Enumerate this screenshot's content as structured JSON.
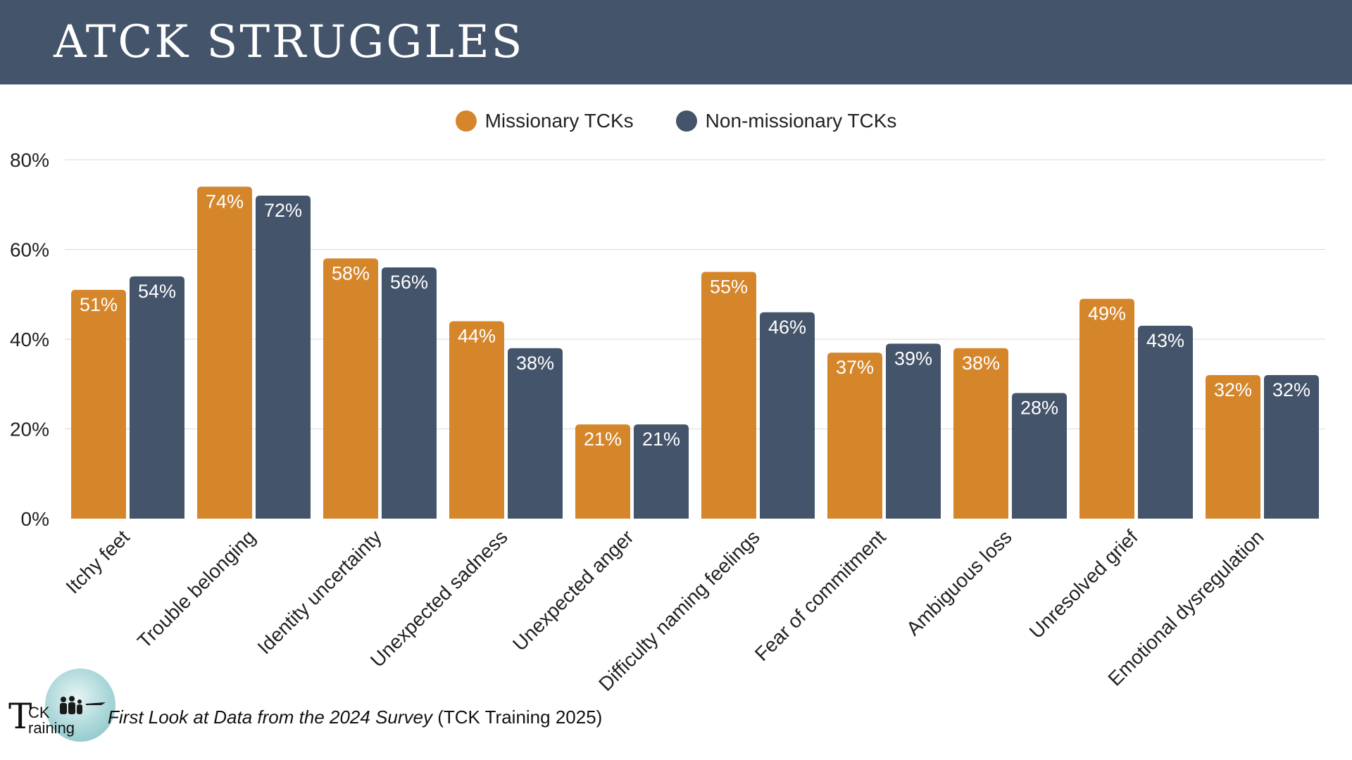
{
  "header": {
    "title": "ATCK STRUGGLES"
  },
  "colors": {
    "header_bg": "#44546a",
    "missionary": "#d5862b",
    "non_missionary": "#44546a"
  },
  "chart_data": {
    "type": "bar",
    "title": "",
    "xlabel": "",
    "ylabel": "",
    "ylim": [
      0,
      80
    ],
    "yticks": [
      "0%",
      "20%",
      "40%",
      "60%",
      "80%"
    ],
    "grid": true,
    "legend_position": "top",
    "categories": [
      "Itchy feet",
      "Trouble belonging",
      "Identity uncertainty",
      "Unexpected sadness",
      "Unexpected anger",
      "Difficulty naming feelings",
      "Fear of commitment",
      "Ambiguous loss",
      "Unresolved grief",
      "Emotional dysregulation"
    ],
    "series": [
      {
        "name": "Missionary TCKs",
        "color": "#d5862b",
        "values": [
          51,
          74,
          58,
          44,
          21,
          55,
          37,
          38,
          49,
          32
        ],
        "labels": [
          "51%",
          "74%",
          "58%",
          "44%",
          "21%",
          "55%",
          "37%",
          "38%",
          "49%",
          "32%"
        ]
      },
      {
        "name": "Non-missionary TCKs",
        "color": "#44546a",
        "values": [
          54,
          72,
          56,
          38,
          21,
          46,
          39,
          28,
          43,
          32
        ],
        "labels": [
          "54%",
          "72%",
          "56%",
          "38%",
          "21%",
          "46%",
          "39%",
          "28%",
          "43%",
          "32%"
        ]
      }
    ]
  },
  "footer": {
    "logo_icon": "tck-training-logo-icon",
    "logo_t": "T",
    "logo_ck": "CK",
    "logo_raining": "raining",
    "caption_italic": "First Look at Data from the 2024 Survey",
    "caption_rest": " (TCK Training 2025)"
  }
}
